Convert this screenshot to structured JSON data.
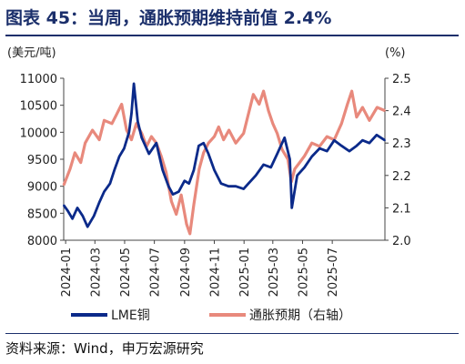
{
  "title": "图表 45：当周，通胀预期维持前值 2.4%",
  "source": "资料来源：Wind，申万宏源研究",
  "colors": {
    "title": "#1b2f6b",
    "lme": "#0b2a8a",
    "inflation": "#e8897c",
    "axis": "#444444"
  },
  "chart_data": {
    "type": "line",
    "left_unit": "(美元/吨)",
    "right_unit": "(%)",
    "left_ylim": [
      8000,
      11000
    ],
    "right_ylim": [
      2.0,
      2.5
    ],
    "left_ticks": [
      "8000",
      "8500",
      "9000",
      "9500",
      "10000",
      "10500",
      "11000"
    ],
    "right_ticks": [
      "2.0",
      "2.1",
      "2.2",
      "2.3",
      "2.4",
      "2.5"
    ],
    "x_range": [
      "2023-12-28",
      "2025-10-17"
    ],
    "x_ticks": [
      "2024-01",
      "2024-03",
      "2024-05",
      "2024-07",
      "2024-09",
      "2024-11",
      "2025-01",
      "2025-03",
      "2025-05",
      "2025-07"
    ],
    "grid": false,
    "legend_position": "bottom",
    "series": [
      {
        "name": "LME铜",
        "axis": "left",
        "points": [
          [
            "2023-12-28",
            8650
          ],
          [
            "2024-01-05",
            8550
          ],
          [
            "2024-01-15",
            8400
          ],
          [
            "2024-01-25",
            8600
          ],
          [
            "2024-02-05",
            8450
          ],
          [
            "2024-02-15",
            8250
          ],
          [
            "2024-02-28",
            8450
          ],
          [
            "2024-03-10",
            8700
          ],
          [
            "2024-03-20",
            8900
          ],
          [
            "2024-04-01",
            9050
          ],
          [
            "2024-04-10",
            9300
          ],
          [
            "2024-04-20",
            9550
          ],
          [
            "2024-04-30",
            9700
          ],
          [
            "2024-05-10",
            10000
          ],
          [
            "2024-05-15",
            10350
          ],
          [
            "2024-05-20",
            10900
          ],
          [
            "2024-05-28",
            10200
          ],
          [
            "2024-06-05",
            9900
          ],
          [
            "2024-06-20",
            9600
          ],
          [
            "2024-07-05",
            9800
          ],
          [
            "2024-07-18",
            9300
          ],
          [
            "2024-07-30",
            9000
          ],
          [
            "2024-08-08",
            8850
          ],
          [
            "2024-08-20",
            8900
          ],
          [
            "2024-09-01",
            9100
          ],
          [
            "2024-09-10",
            9050
          ],
          [
            "2024-09-20",
            9300
          ],
          [
            "2024-09-30",
            9750
          ],
          [
            "2024-10-10",
            9800
          ],
          [
            "2024-10-20",
            9600
          ],
          [
            "2024-11-01",
            9300
          ],
          [
            "2024-11-15",
            9050
          ],
          [
            "2024-11-30",
            9000
          ],
          [
            "2024-12-15",
            9000
          ],
          [
            "2024-12-31",
            8950
          ],
          [
            "2025-01-10",
            9050
          ],
          [
            "2025-01-25",
            9200
          ],
          [
            "2025-02-10",
            9400
          ],
          [
            "2025-02-25",
            9350
          ],
          [
            "2025-03-10",
            9600
          ],
          [
            "2025-03-25",
            9900
          ],
          [
            "2025-04-05",
            9500
          ],
          [
            "2025-04-09",
            8600
          ],
          [
            "2025-04-20",
            9200
          ],
          [
            "2025-05-05",
            9350
          ],
          [
            "2025-05-20",
            9550
          ],
          [
            "2025-06-05",
            9700
          ],
          [
            "2025-06-20",
            9650
          ],
          [
            "2025-07-05",
            9850
          ],
          [
            "2025-07-20",
            9750
          ],
          [
            "2025-08-05",
            9650
          ],
          [
            "2025-08-20",
            9750
          ],
          [
            "2025-09-01",
            9850
          ],
          [
            "2025-09-15",
            9800
          ],
          [
            "2025-09-30",
            9950
          ],
          [
            "2025-10-17",
            9850
          ]
        ]
      },
      {
        "name": "通胀预期（右轴）",
        "axis": "right",
        "points": [
          [
            "2023-12-28",
            2.17
          ],
          [
            "2024-01-10",
            2.22
          ],
          [
            "2024-01-20",
            2.27
          ],
          [
            "2024-02-01",
            2.24
          ],
          [
            "2024-02-10",
            2.3
          ],
          [
            "2024-02-25",
            2.34
          ],
          [
            "2024-03-10",
            2.31
          ],
          [
            "2024-03-20",
            2.37
          ],
          [
            "2024-04-05",
            2.36
          ],
          [
            "2024-04-15",
            2.39
          ],
          [
            "2024-04-25",
            2.42
          ],
          [
            "2024-05-05",
            2.34
          ],
          [
            "2024-05-15",
            2.31
          ],
          [
            "2024-05-25",
            2.36
          ],
          [
            "2024-06-05",
            2.33
          ],
          [
            "2024-06-15",
            2.29
          ],
          [
            "2024-06-25",
            2.32
          ],
          [
            "2024-07-05",
            2.3
          ],
          [
            "2024-07-15",
            2.26
          ],
          [
            "2024-07-25",
            2.21
          ],
          [
            "2024-08-05",
            2.12
          ],
          [
            "2024-08-15",
            2.08
          ],
          [
            "2024-08-25",
            2.14
          ],
          [
            "2024-09-05",
            2.05
          ],
          [
            "2024-09-12",
            2.02
          ],
          [
            "2024-09-20",
            2.11
          ],
          [
            "2024-10-01",
            2.22
          ],
          [
            "2024-10-10",
            2.27
          ],
          [
            "2024-10-20",
            2.3
          ],
          [
            "2024-11-01",
            2.32
          ],
          [
            "2024-11-10",
            2.35
          ],
          [
            "2024-11-20",
            2.31
          ],
          [
            "2024-12-01",
            2.34
          ],
          [
            "2024-12-15",
            2.3
          ],
          [
            "2024-12-31",
            2.33
          ],
          [
            "2025-01-10",
            2.39
          ],
          [
            "2025-01-20",
            2.45
          ],
          [
            "2025-02-01",
            2.42
          ],
          [
            "2025-02-10",
            2.46
          ],
          [
            "2025-02-20",
            2.4
          ],
          [
            "2025-03-01",
            2.36
          ],
          [
            "2025-03-10",
            2.33
          ],
          [
            "2025-03-20",
            2.28
          ],
          [
            "2025-04-01",
            2.25
          ],
          [
            "2025-04-08",
            2.18
          ],
          [
            "2025-04-15",
            2.22
          ],
          [
            "2025-04-25",
            2.24
          ],
          [
            "2025-05-05",
            2.26
          ],
          [
            "2025-05-20",
            2.3
          ],
          [
            "2025-06-05",
            2.29
          ],
          [
            "2025-06-20",
            2.32
          ],
          [
            "2025-07-05",
            2.31
          ],
          [
            "2025-07-20",
            2.36
          ],
          [
            "2025-08-01",
            2.42
          ],
          [
            "2025-08-10",
            2.46
          ],
          [
            "2025-08-20",
            2.38
          ],
          [
            "2025-09-01",
            2.41
          ],
          [
            "2025-09-15",
            2.37
          ],
          [
            "2025-10-01",
            2.41
          ],
          [
            "2025-10-17",
            2.4
          ]
        ]
      }
    ]
  }
}
